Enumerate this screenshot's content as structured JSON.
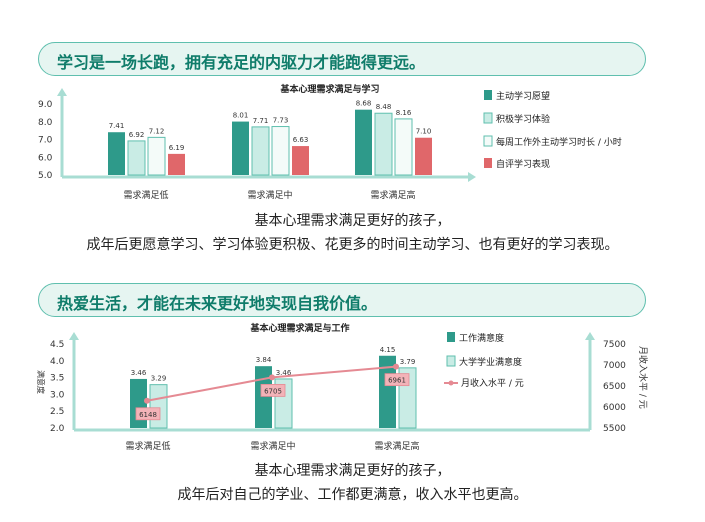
{
  "banner1": "学习是一场长跑，拥有充足的内驱力才能跑得更远。",
  "banner2": "热爱生活，才能在未来更好地实现自我价值。",
  "caption1": {
    "line1": "基本心理需求满足更好的孩子，",
    "line2": "成年后更愿意学习、学习体验更积极、花更多的时间主动学习、也有更好的学习表现。"
  },
  "caption2": {
    "line1": "基本心理需求满足更好的孩子，",
    "line2": "成年后对自己的学业、工作都更满意，收入水平也更高。"
  },
  "colors": {
    "teal": "#2e9a8a",
    "light_teal": "#c9ece5",
    "white_bar": "#f4fbf9",
    "red": "#e0676a",
    "pink_line": "#e58a93",
    "banner_bg": "#e6f5f1",
    "banner_border": "#5fbfae"
  },
  "chart_data": [
    {
      "type": "bar",
      "title": "基本心理需求满足与学习",
      "categories": [
        "需求满足低",
        "需求满足中",
        "需求满足高"
      ],
      "ylim": [
        5.0,
        9.0
      ],
      "yticks": [
        "5.0",
        "6.0",
        "7.0",
        "8.0",
        "9.0"
      ],
      "series": [
        {
          "name": "主动学习愿望",
          "values": [
            7.41,
            8.01,
            8.68
          ],
          "labels": [
            "7.41",
            "8.01",
            "8.68"
          ],
          "color": "#2e9a8a"
        },
        {
          "name": "积极学习体验",
          "values": [
            6.92,
            7.71,
            8.48
          ],
          "labels": [
            "6.92",
            "7.71",
            "8.48"
          ],
          "color": "#c9ece5"
        },
        {
          "name": "每周工作外主动学习时长 / 小时",
          "values": [
            7.12,
            7.73,
            8.16
          ],
          "labels": [
            "7.12",
            "7.73",
            "8.16"
          ],
          "color": "#f4fbf9"
        },
        {
          "name": "自评学习表现",
          "values": [
            6.19,
            6.63,
            7.1
          ],
          "labels": [
            "6.19",
            "6.63",
            "7.10"
          ],
          "color": "#e0676a"
        }
      ],
      "legend_position": "right"
    },
    {
      "type": "bar",
      "title": "基本心理需求满足与工作",
      "categories": [
        "需求满足低",
        "需求满足中",
        "需求满足高"
      ],
      "ylabel": "满意度",
      "ylim": [
        2.0,
        4.5
      ],
      "yticks": [
        "2.0",
        "2.5",
        "3.0",
        "3.5",
        "4.0",
        "4.5"
      ],
      "y2label": "月收入水平 / 元",
      "y2lim": [
        5500,
        7500
      ],
      "y2ticks": [
        "5500",
        "6000",
        "6500",
        "7000",
        "7500"
      ],
      "series": [
        {
          "name": "工作满意度",
          "type": "bar",
          "values": [
            3.46,
            3.84,
            4.15
          ],
          "labels": [
            "3.46",
            "3.84",
            "4.15"
          ],
          "color": "#2e9a8a"
        },
        {
          "name": "大学学业满意度",
          "type": "bar",
          "values": [
            3.29,
            3.46,
            3.79
          ],
          "labels": [
            "3.29",
            "3.46",
            "3.79"
          ],
          "color": "#c9ece5"
        },
        {
          "name": "月收入水平 / 元",
          "type": "line",
          "axis": "right",
          "values": [
            6148,
            6705,
            6961
          ],
          "labels": [
            "6148",
            "6705",
            "6961"
          ],
          "color": "#e58a93"
        }
      ],
      "legend_position": "right"
    }
  ]
}
